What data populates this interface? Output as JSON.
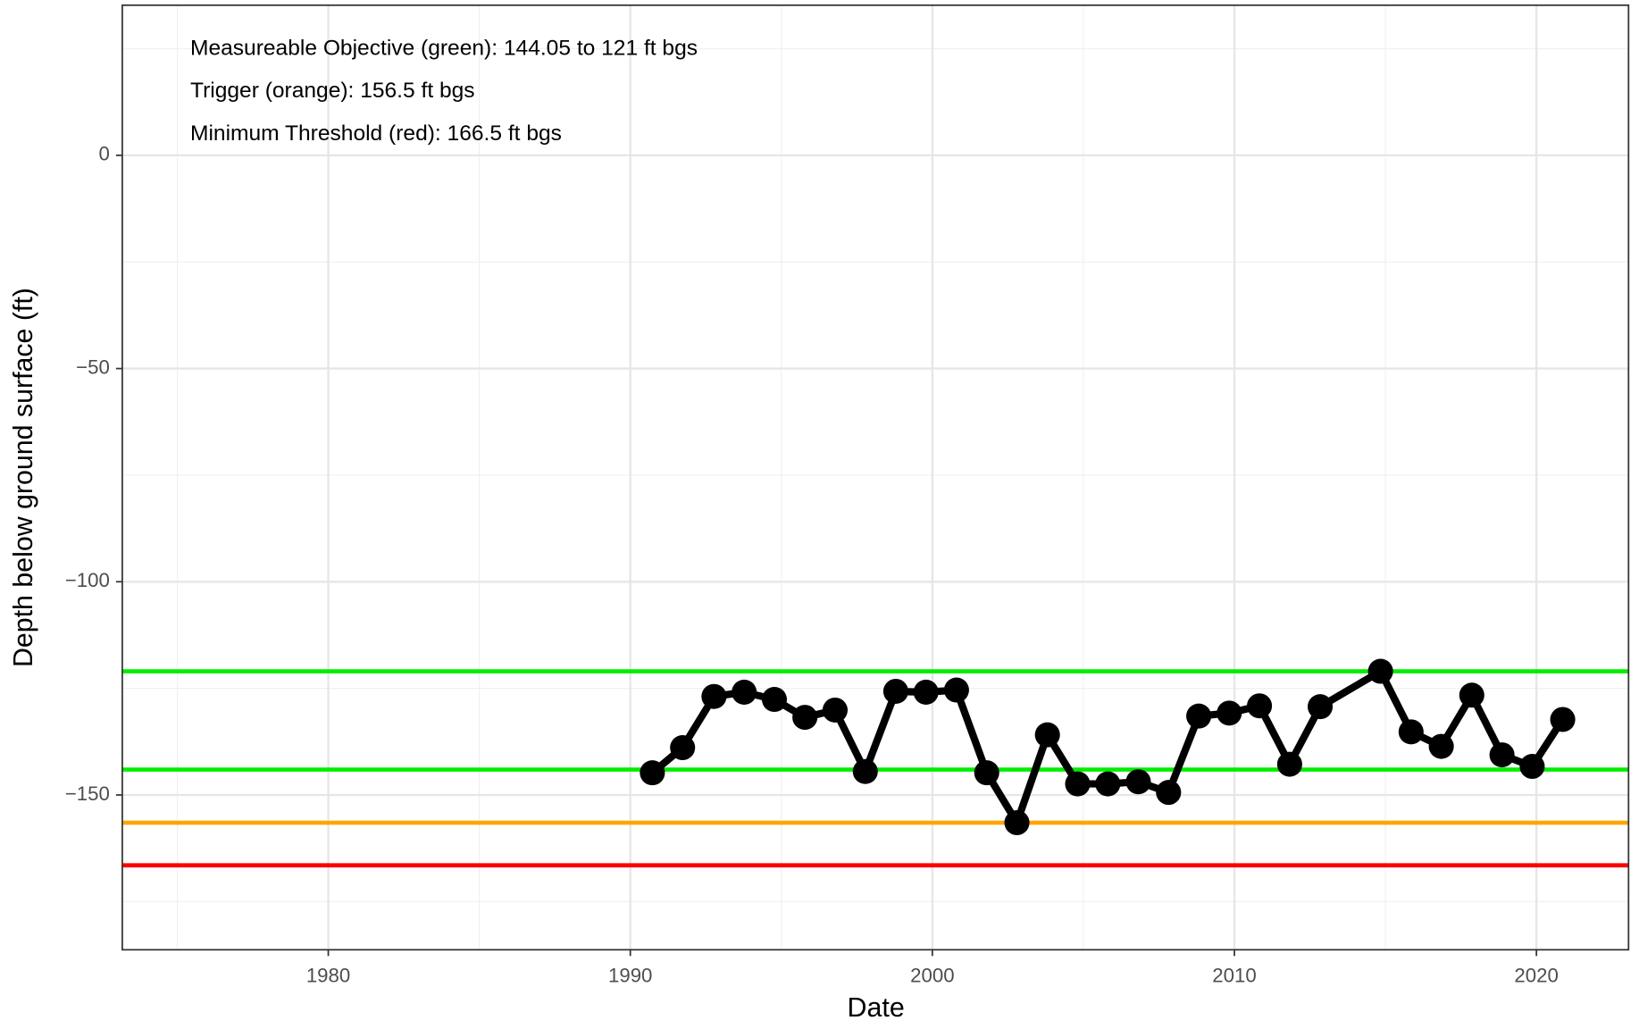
{
  "chart_data": {
    "type": "line",
    "x_label": "Date",
    "y_label": "Depth below ground surface (ft)",
    "annotations": [
      "Measureable Objective (green): 144.05 to 121 ft bgs",
      "Trigger (orange): 156.5 ft bgs",
      "Minimum Threshold (red): 166.5 ft bgs"
    ],
    "xlim": [
      1973.18,
      2023.05
    ],
    "ylim": [
      -186.3,
      35.2
    ],
    "xticks": [
      1980,
      1990,
      2000,
      2010,
      2020
    ],
    "yticks": [
      0,
      -50,
      -100,
      -150
    ],
    "xminor": [
      1975,
      1985,
      1995,
      2005,
      2015
    ],
    "yminor": [
      25,
      -25,
      -75,
      -125,
      -175
    ],
    "grid": true,
    "reference_lines": [
      {
        "value": -121,
        "color": "#00ee00"
      },
      {
        "value": -144.05,
        "color": "#00ee00"
      },
      {
        "value": -156.5,
        "color": "#ffa500"
      },
      {
        "value": -166.5,
        "color": "#ff0000"
      }
    ],
    "series": [
      {
        "color": "#000000",
        "x": [
          1990.73,
          1991.73,
          1992.77,
          1993.77,
          1994.77,
          1995.78,
          1996.78,
          1997.78,
          1998.79,
          1999.79,
          2000.8,
          2001.8,
          2002.8,
          2003.81,
          2004.81,
          2005.81,
          2006.82,
          2007.82,
          2008.82,
          2009.83,
          2010.83,
          2011.83,
          2012.84,
          2014.84,
          2015.85,
          2016.85,
          2017.86,
          2018.86,
          2019.86,
          2020.87
        ],
        "values": [
          -144.8,
          -138.9,
          -126.9,
          -125.9,
          -127.6,
          -131.8,
          -130.1,
          -144.5,
          -125.7,
          -125.9,
          -125.4,
          -144.8,
          -156.5,
          -135.9,
          -147.4,
          -147.4,
          -146.9,
          -149.4,
          -131.5,
          -130.8,
          -129.1,
          -142.8,
          -129.3,
          -121.0,
          -135.2,
          -138.6,
          -126.6,
          -140.6,
          -143.3,
          -132.3
        ]
      }
    ]
  }
}
